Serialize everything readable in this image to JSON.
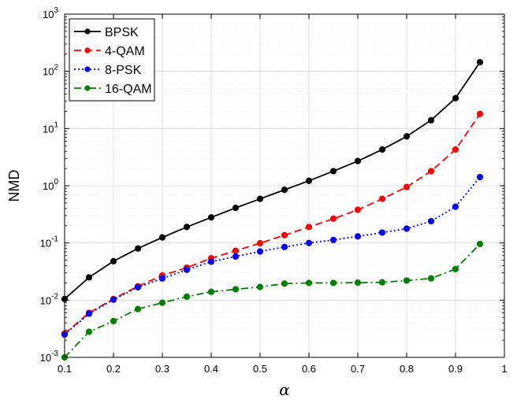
{
  "chart_data": {
    "type": "line",
    "title": "",
    "xlabel": "α",
    "ylabel": "NMD",
    "xlim": [
      0.1,
      1
    ],
    "ylim": [
      0.001,
      1000
    ],
    "yscale": "log",
    "grid": true,
    "legend_position": "top-left",
    "x_ticks": [
      "0.1",
      "0.2",
      "0.3",
      "0.4",
      "0.5",
      "0.6",
      "0.7",
      "0.8",
      "0.9",
      "1"
    ],
    "y_ticks": [
      {
        "base": "10",
        "exp": "-3"
      },
      {
        "base": "10",
        "exp": "-2"
      },
      {
        "base": "10",
        "exp": "-1"
      },
      {
        "base": "10",
        "exp": "0"
      },
      {
        "base": "10",
        "exp": "1"
      },
      {
        "base": "10",
        "exp": "2"
      },
      {
        "base": "10",
        "exp": "3"
      }
    ],
    "x": [
      0.1,
      0.15,
      0.2,
      0.25,
      0.3,
      0.35,
      0.4,
      0.45,
      0.5,
      0.55,
      0.6,
      0.65,
      0.7,
      0.75,
      0.8,
      0.85,
      0.9,
      0.95
    ],
    "series": [
      {
        "name": "BPSK",
        "color": "#000000",
        "dash": "solid",
        "values": [
          0.0105,
          0.025,
          0.048,
          0.08,
          0.125,
          0.19,
          0.28,
          0.41,
          0.59,
          0.85,
          1.22,
          1.8,
          2.7,
          4.3,
          7.3,
          14,
          34,
          145
        ]
      },
      {
        "name": "4-QAM",
        "color": "#ff0000",
        "dash": "dashed",
        "values": [
          0.0026,
          0.006,
          0.0105,
          0.0175,
          0.027,
          0.037,
          0.054,
          0.073,
          0.099,
          0.137,
          0.19,
          0.265,
          0.38,
          0.59,
          0.95,
          1.8,
          4.3,
          18
        ]
      },
      {
        "name": "8-PSK",
        "color": "#0000ff",
        "dash": "dotted",
        "values": [
          0.0025,
          0.0058,
          0.0102,
          0.0168,
          0.024,
          0.034,
          0.047,
          0.058,
          0.071,
          0.085,
          0.1,
          0.113,
          0.13,
          0.152,
          0.178,
          0.24,
          0.43,
          1.42
        ]
      },
      {
        "name": "16-QAM",
        "color": "#008000",
        "dash": "dashdot",
        "values": [
          0.001,
          0.0028,
          0.0043,
          0.007,
          0.009,
          0.0115,
          0.014,
          0.0155,
          0.017,
          0.0195,
          0.02,
          0.02,
          0.0202,
          0.0205,
          0.022,
          0.024,
          0.035,
          0.096
        ]
      }
    ]
  }
}
